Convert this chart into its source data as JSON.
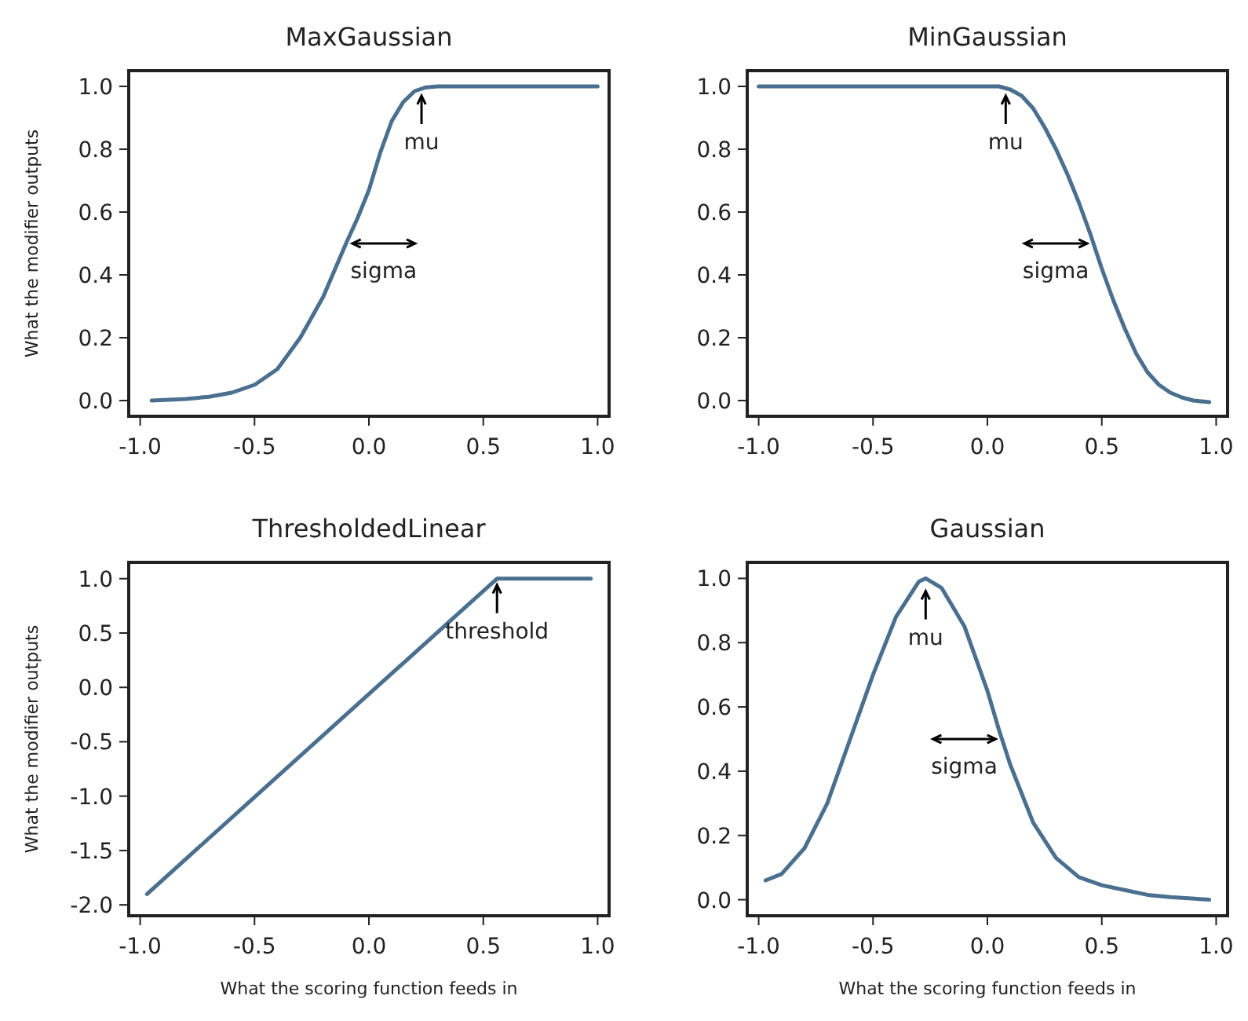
{
  "chart_data": [
    {
      "type": "line",
      "title": "MaxGaussian",
      "ylabel": "What the modifier outputs",
      "color": "#4a6f8f",
      "tick_labels": "xy",
      "xlim": [
        -1.05,
        1.05
      ],
      "ylim": [
        -0.05,
        1.05
      ],
      "xticks": [
        {
          "value": -1,
          "label": "-1.0"
        },
        {
          "value": -0.5,
          "label": "-0.5"
        },
        {
          "value": 0,
          "label": "0.0"
        },
        {
          "value": 0.5,
          "label": "0.5"
        },
        {
          "value": 1,
          "label": "1.0"
        }
      ],
      "yticks": [
        {
          "value": 0,
          "label": "0.0"
        },
        0.2,
        0.4,
        0.6,
        0.8,
        {
          "value": 1,
          "label": "1.0"
        }
      ],
      "x": [
        -0.95,
        -0.8,
        -0.7,
        -0.6,
        -0.5,
        -0.4,
        -0.3,
        -0.2,
        -0.1,
        -0.05,
        0.0,
        0.05,
        0.1,
        0.15,
        0.2,
        0.25,
        0.3,
        0.5,
        0.75,
        1.0
      ],
      "values": [
        0.0,
        0.005,
        0.012,
        0.025,
        0.05,
        0.1,
        0.2,
        0.33,
        0.5,
        0.58,
        0.67,
        0.79,
        0.89,
        0.95,
        0.985,
        0.997,
        1.0,
        1.0,
        1.0,
        1.0
      ],
      "annotations": [
        {
          "text": "mu",
          "x": 0.23,
          "y": 0.99
        },
        "sigma"
      ]
    },
    {
      "type": "line",
      "title": "MinGaussian",
      "color": "#4a6f8f",
      "xlim": [
        -1.05,
        1.05
      ],
      "ylim": [
        -0.05,
        1.05
      ],
      "xticks": [
        {
          "value": -1,
          "label": "-1.0"
        },
        {
          "value": -0.5,
          "label": "-0.5"
        },
        {
          "value": 0,
          "label": "0.0"
        },
        {
          "value": 0.5,
          "label": "0.5"
        },
        {
          "value": 1,
          "label": "1.0"
        }
      ],
      "yticks": [
        {
          "value": 0,
          "label": "0.0"
        },
        0.2,
        0.4,
        0.6,
        0.8,
        {
          "value": 1,
          "label": "1.0"
        }
      ],
      "x": [
        -1.0,
        -0.5,
        0.0,
        0.05,
        0.1,
        0.15,
        0.2,
        0.25,
        0.3,
        0.35,
        0.4,
        0.45,
        0.5,
        0.55,
        0.6,
        0.65,
        0.7,
        0.75,
        0.8,
        0.85,
        0.9,
        0.97
      ],
      "values": [
        1.0,
        1.0,
        1.0,
        1.0,
        0.99,
        0.97,
        0.93,
        0.87,
        0.8,
        0.72,
        0.63,
        0.53,
        0.42,
        0.32,
        0.23,
        0.15,
        0.09,
        0.05,
        0.025,
        0.01,
        0.0,
        -0.005
      ],
      "annotations": [
        {
          "text": "mu",
          "x": 0.08,
          "y": 0.99
        },
        "sigma"
      ]
    },
    {
      "type": "line",
      "title": "ThresholdedLinear",
      "ylabel": "What the modifier outputs",
      "xlabel": "What the scoring function feeds in",
      "color": "#4a6f8f",
      "xlim": [
        -1.05,
        1.05
      ],
      "ylim": [
        -2.1,
        1.15
      ],
      "xticks": [
        {
          "value": -1,
          "label": "-1.0"
        },
        {
          "value": -0.5,
          "label": "-0.5"
        },
        {
          "value": 0,
          "label": "0.0"
        },
        {
          "value": 0.5,
          "label": "0.5"
        },
        {
          "value": 1,
          "label": "1.0"
        }
      ],
      "yticks": [
        {
          "value": -2,
          "label": "-2.0"
        },
        -1.5,
        {
          "value": -1,
          "label": "-1.0"
        },
        -0.5,
        {
          "value": 0,
          "label": "0.0"
        },
        0.5,
        {
          "value": 1,
          "label": "1.0"
        }
      ],
      "x": [
        -0.97,
        0.56,
        0.97
      ],
      "values": [
        -1.9,
        1.0,
        1.0
      ],
      "annotations": [
        {
          "text": "threshold",
          "x": 0.56,
          "y": 1.0
        }
      ]
    },
    {
      "type": "line",
      "title": "Gaussian",
      "xlabel": "What the scoring function feeds in",
      "color": "#4a6f8f",
      "xlim": [
        -1.05,
        1.05
      ],
      "ylim": [
        -0.05,
        1.05
      ],
      "xticks": [
        {
          "value": -1,
          "label": "-1.0"
        },
        {
          "value": -0.5,
          "label": "-0.5"
        },
        {
          "value": 0,
          "label": "0.0"
        },
        {
          "value": 0.5,
          "label": "0.5"
        },
        {
          "value": 1,
          "label": "1.0"
        }
      ],
      "yticks": [
        {
          "value": 0,
          "label": "0.0"
        },
        0.2,
        0.4,
        0.6,
        0.8,
        {
          "value": 1,
          "label": "1.0"
        }
      ],
      "x": [
        -0.97,
        -0.9,
        -0.8,
        -0.7,
        -0.6,
        -0.5,
        -0.4,
        -0.3,
        -0.27,
        -0.2,
        -0.1,
        0.0,
        0.05,
        0.1,
        0.2,
        0.3,
        0.4,
        0.5,
        0.6,
        0.7,
        0.8,
        0.97
      ],
      "values": [
        0.06,
        0.08,
        0.16,
        0.3,
        0.5,
        0.7,
        0.88,
        0.99,
        1.0,
        0.97,
        0.85,
        0.65,
        0.53,
        0.42,
        0.24,
        0.13,
        0.07,
        0.045,
        0.03,
        0.015,
        0.008,
        0.0
      ],
      "annotations": [
        {
          "text": "mu",
          "x": -0.27,
          "y": 0.98
        },
        "sigma"
      ]
    }
  ]
}
